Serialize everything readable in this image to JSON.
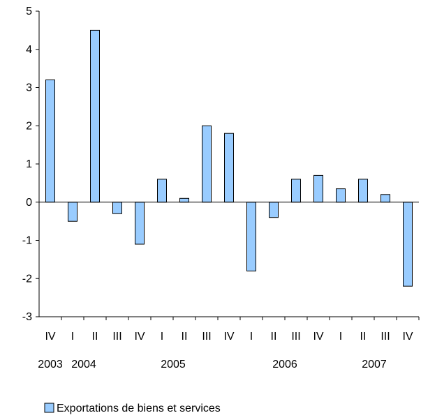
{
  "chart_data": {
    "type": "bar",
    "title": "",
    "xlabel": "",
    "ylabel": "",
    "ylim": [
      -3,
      5
    ],
    "yticks": [
      5,
      4,
      3,
      2,
      1,
      0,
      -1,
      -2,
      -3
    ],
    "grid": false,
    "legend_position": "bottom",
    "categories": [
      "IV",
      "I",
      "II",
      "III",
      "IV",
      "I",
      "II",
      "III",
      "IV",
      "I",
      "II",
      "III",
      "IV",
      "I",
      "II",
      "III",
      "IV"
    ],
    "years": [
      {
        "label": "2003",
        "start": 0,
        "end": 0
      },
      {
        "label": "2004",
        "start": 1,
        "end": 2
      },
      {
        "label": "2005",
        "start": 3,
        "end": 8
      },
      {
        "label": "2006",
        "start": 9,
        "end": 12
      },
      {
        "label": "2007",
        "start": 13,
        "end": 16
      }
    ],
    "series": [
      {
        "name": "Exportations de biens et services",
        "color": "#99ccff",
        "values": [
          3.2,
          -0.5,
          4.5,
          -0.3,
          -1.1,
          0.6,
          0.1,
          2.0,
          1.8,
          -1.8,
          -0.4,
          0.6,
          0.7,
          0.35,
          0.6,
          0.2,
          -2.2
        ]
      }
    ]
  }
}
